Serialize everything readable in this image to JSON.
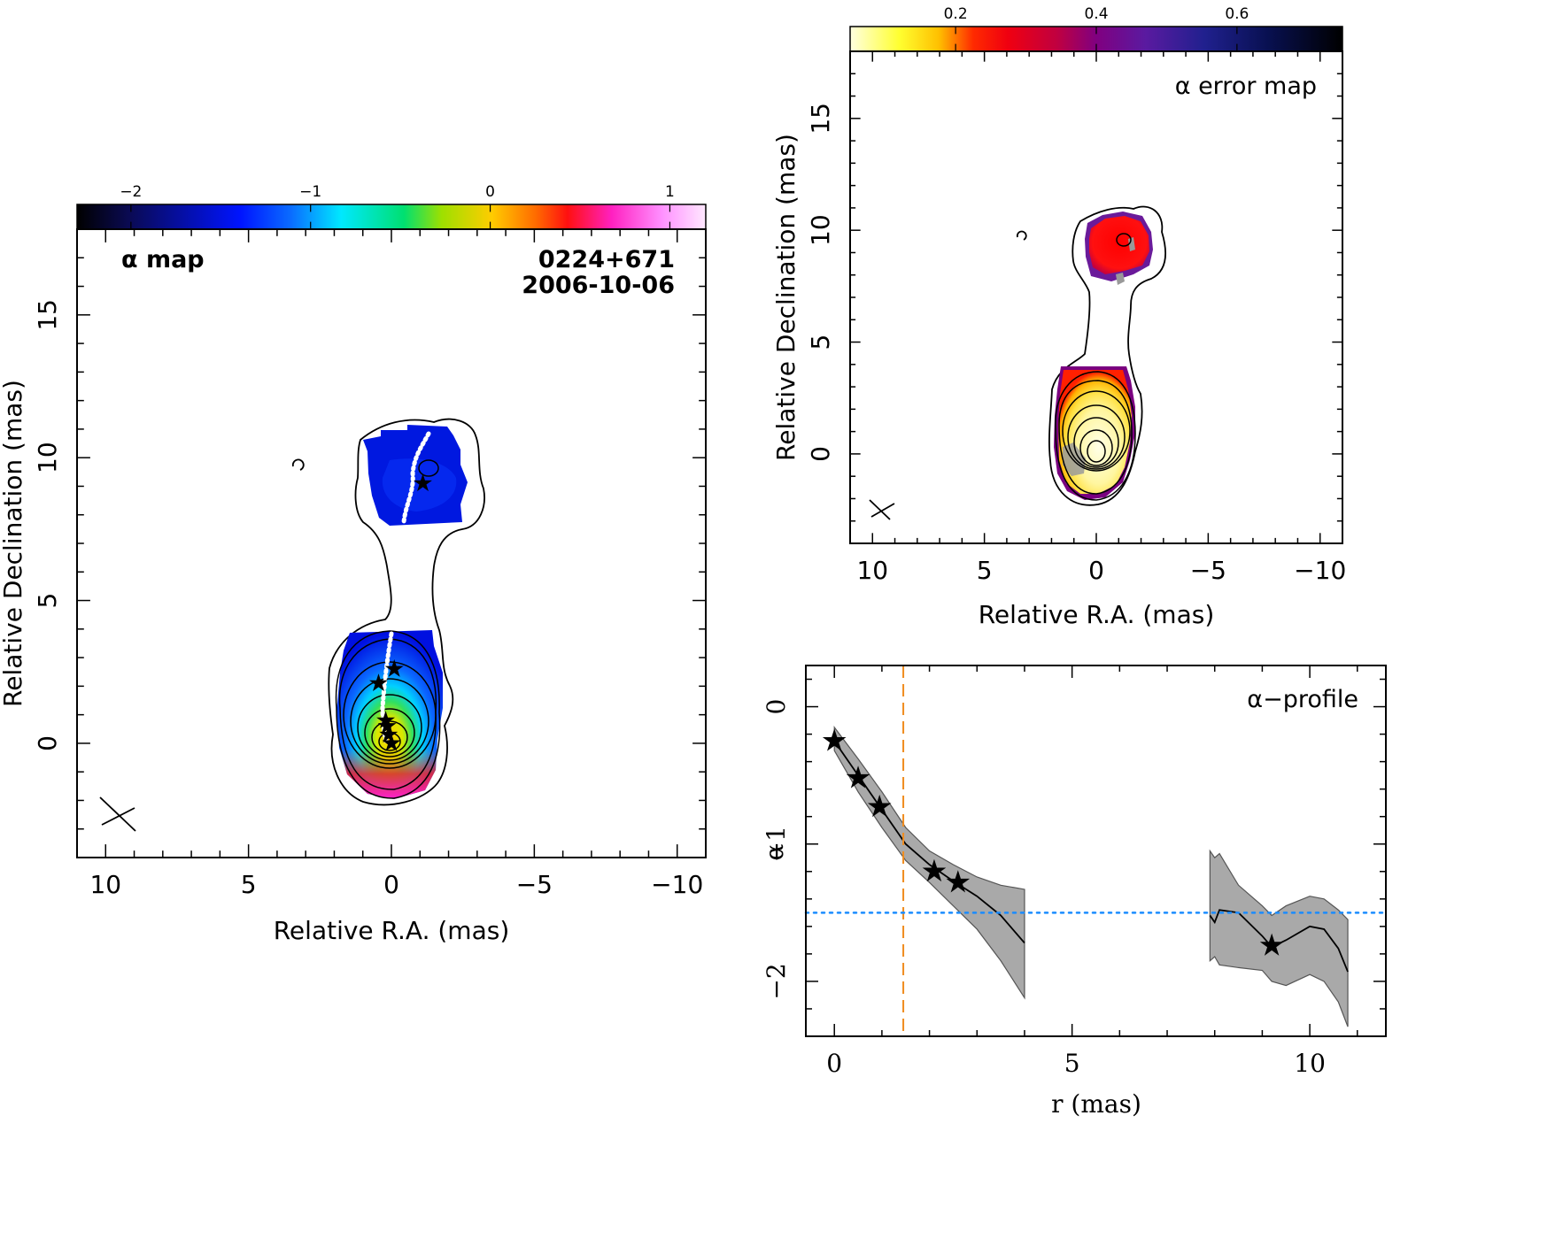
{
  "chart_data": [
    {
      "type": "heatmap",
      "panel": "alpha-map",
      "label": "α map",
      "source": "0224+671",
      "date": "2006-10-06",
      "xlabel": "Relative R.A. (mas)",
      "ylabel": "Relative Declination (mas)",
      "xlim": [
        11,
        -11
      ],
      "ylim": [
        -4,
        18
      ],
      "xticks": [
        "10",
        "5",
        "0",
        "−5",
        "−10"
      ],
      "yticks": [
        "0",
        "5",
        "10",
        "15"
      ],
      "colorbar": {
        "range": [
          -2.3,
          1.2
        ],
        "ticks": [
          "−2",
          "−1",
          "0",
          "1"
        ],
        "tick_values": [
          -2,
          -1,
          0,
          1
        ]
      },
      "stars": [
        [
          0,
          0
        ],
        [
          0.1,
          0.3
        ],
        [
          0.15,
          0.6
        ],
        [
          0.2,
          0.8
        ],
        [
          -0.1,
          2.6
        ],
        [
          0.45,
          2.1
        ],
        [
          -1.1,
          9.1
        ]
      ]
    },
    {
      "type": "heatmap",
      "panel": "alpha-error-map",
      "label": "α error map",
      "xlabel": "Relative R.A. (mas)",
      "ylabel": "Relative Declination (mas)",
      "xlim": [
        11,
        -11
      ],
      "ylim": [
        -4,
        18
      ],
      "xticks": [
        "10",
        "5",
        "0",
        "−5",
        "−10"
      ],
      "yticks": [
        "0",
        "5",
        "10",
        "15"
      ],
      "colorbar": {
        "range": [
          0.05,
          0.75
        ],
        "ticks": [
          "0.2",
          "0.4",
          "0.6"
        ],
        "tick_values": [
          0.2,
          0.4,
          0.6
        ]
      }
    },
    {
      "type": "line",
      "panel": "alpha-profile",
      "label": "α−profile",
      "xlabel": "r (mas)",
      "ylabel": "α",
      "xlim": [
        -0.6,
        11.6
      ],
      "ylim": [
        -2.4,
        0.3
      ],
      "xticks": [
        "0",
        "5",
        "10"
      ],
      "yticks": [
        "0",
        "−1",
        "−2"
      ],
      "segments": [
        {
          "x": [
            0,
            0.5,
            1.0,
            1.5,
            2.0,
            2.5,
            3.0,
            3.5,
            4.0
          ],
          "y": [
            -0.25,
            -0.5,
            -0.75,
            -1.0,
            -1.15,
            -1.27,
            -1.38,
            -1.52,
            -1.72
          ],
          "upper": [
            -0.15,
            -0.38,
            -0.62,
            -0.88,
            -1.05,
            -1.15,
            -1.24,
            -1.3,
            -1.33
          ],
          "lower": [
            -0.32,
            -0.62,
            -0.88,
            -1.12,
            -1.28,
            -1.45,
            -1.62,
            -1.85,
            -2.12
          ]
        },
        {
          "x": [
            7.9,
            8.0,
            8.1,
            8.5,
            9.0,
            9.2,
            9.5,
            10.0,
            10.3,
            10.6,
            10.8
          ],
          "y": [
            -1.52,
            -1.57,
            -1.48,
            -1.5,
            -1.67,
            -1.75,
            -1.7,
            -1.6,
            -1.62,
            -1.76,
            -1.93
          ],
          "upper": [
            -1.05,
            -1.1,
            -1.07,
            -1.3,
            -1.45,
            -1.52,
            -1.45,
            -1.38,
            -1.4,
            -1.48,
            -1.55
          ],
          "lower": [
            -1.85,
            -1.82,
            -1.88,
            -1.9,
            -1.92,
            -2.0,
            -2.03,
            -1.95,
            -2.0,
            -2.15,
            -2.33
          ]
        }
      ],
      "stars": [
        [
          0,
          -0.25
        ],
        [
          0.5,
          -0.52
        ],
        [
          0.95,
          -0.73
        ],
        [
          2.1,
          -1.2
        ],
        [
          2.6,
          -1.28
        ],
        [
          9.2,
          -1.74
        ]
      ],
      "vline_x": 1.45,
      "hline_y": -1.5,
      "colors": {
        "band": "#a9a9a9",
        "vline": "#f08c1e",
        "hline": "#1a8cff"
      }
    }
  ]
}
